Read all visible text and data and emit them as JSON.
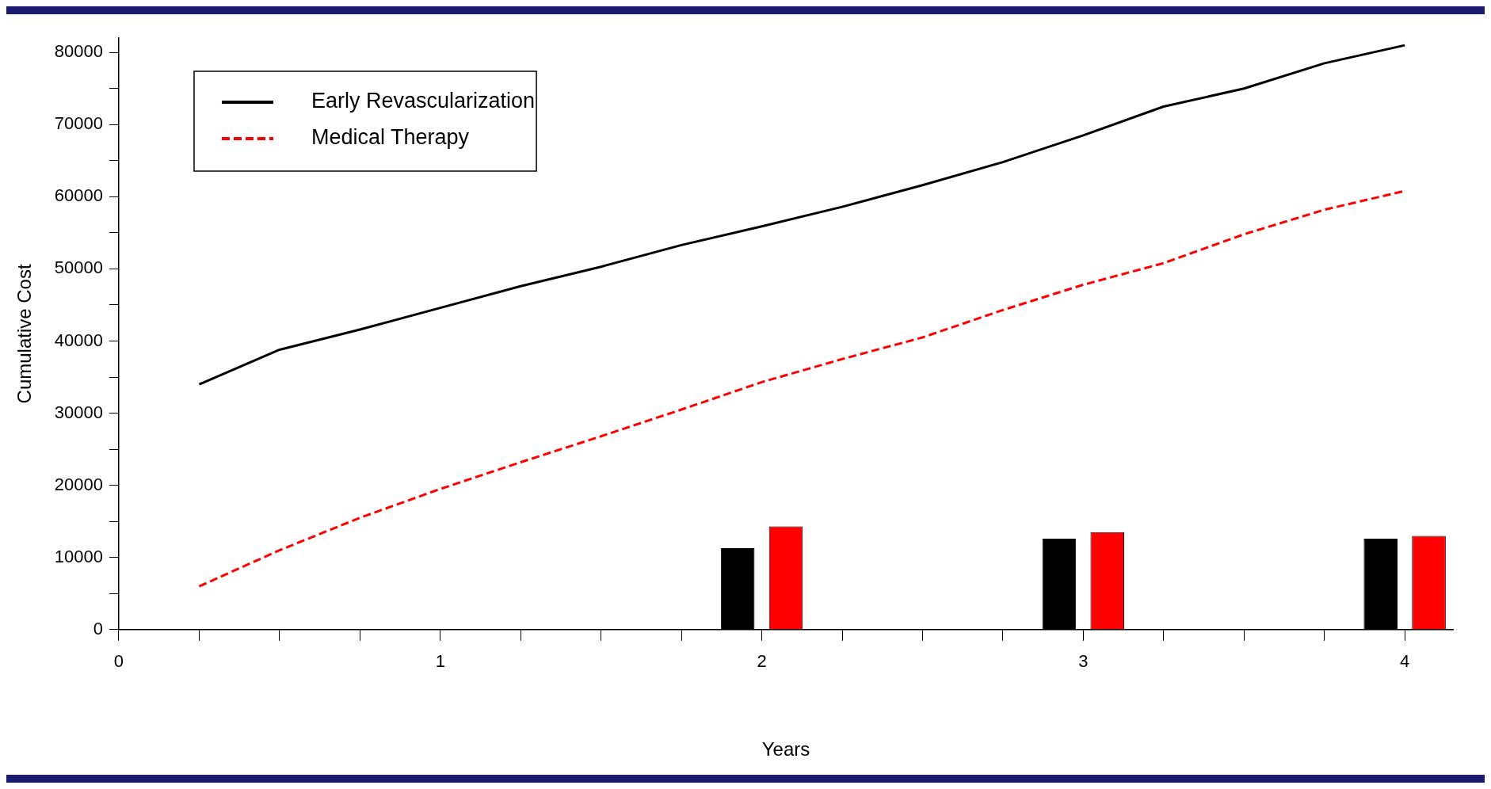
{
  "chart_data": {
    "type": "line",
    "xlabel": "Years",
    "ylabel": "Cumulative Cost",
    "xlim": [
      0,
      4.15
    ],
    "xticks": [
      0,
      {
        "value": 0.25,
        "label": null
      },
      {
        "value": 0.5,
        "label": null
      },
      {
        "value": 0.75,
        "label": null
      },
      1,
      {
        "value": 1.25,
        "label": null
      },
      {
        "value": 1.5,
        "label": null
      },
      {
        "value": 1.75,
        "label": null
      },
      2,
      {
        "value": 2.25,
        "label": null
      },
      {
        "value": 2.5,
        "label": null
      },
      {
        "value": 2.75,
        "label": null
      },
      3,
      {
        "value": 3.25,
        "label": null
      },
      {
        "value": 3.5,
        "label": null
      },
      {
        "value": 3.75,
        "label": null
      },
      4
    ],
    "ylim": [
      0,
      82000
    ],
    "yticks": [
      0,
      {
        "value": 5000,
        "label": null
      },
      10000,
      {
        "value": 15000,
        "label": null
      },
      20000,
      {
        "value": 25000,
        "label": null
      },
      30000,
      {
        "value": 35000,
        "label": null
      },
      40000,
      {
        "value": 45000,
        "label": null
      },
      50000,
      {
        "value": 55000,
        "label": null
      },
      60000,
      {
        "value": 65000,
        "label": null
      },
      70000,
      {
        "value": 75000,
        "label": null
      },
      80000
    ],
    "grid": false,
    "legend": "top left",
    "series": [
      {
        "name": "Early Revascularization",
        "line_style": "solid",
        "color": "#000000",
        "x": [
          0.25,
          0.5,
          0.75,
          1,
          1.25,
          1.5,
          1.75,
          2,
          2.25,
          2.5,
          2.75,
          3,
          3.25,
          3.5,
          3.75,
          4
        ],
        "values": [
          34000,
          38800,
          41600,
          44600,
          47600,
          50300,
          53300,
          55900,
          58600,
          61600,
          64800,
          68500,
          72500,
          75000,
          78500,
          81000
        ]
      },
      {
        "name": "Medical Therapy",
        "line_style": "dashed",
        "color": "#ff0000",
        "x": [
          0.25,
          0.5,
          0.75,
          1,
          1.25,
          1.5,
          1.75,
          2,
          2.25,
          2.5,
          2.75,
          3,
          3.25,
          3.5,
          3.75,
          4
        ],
        "values": [
          6000,
          11000,
          15500,
          19500,
          23200,
          26800,
          30500,
          34300,
          37500,
          40500,
          44300,
          47800,
          50800,
          54800,
          58200,
          60800
        ]
      },
      {
        "type": "bar",
        "color": "#000000",
        "x": [
          2,
          3,
          4
        ],
        "values": [
          11300,
          12600,
          12600
        ]
      },
      {
        "type": "bar",
        "color": "#ff0000",
        "x": [
          2,
          3,
          4
        ],
        "values": [
          14300,
          13500,
          13000
        ]
      }
    ]
  }
}
